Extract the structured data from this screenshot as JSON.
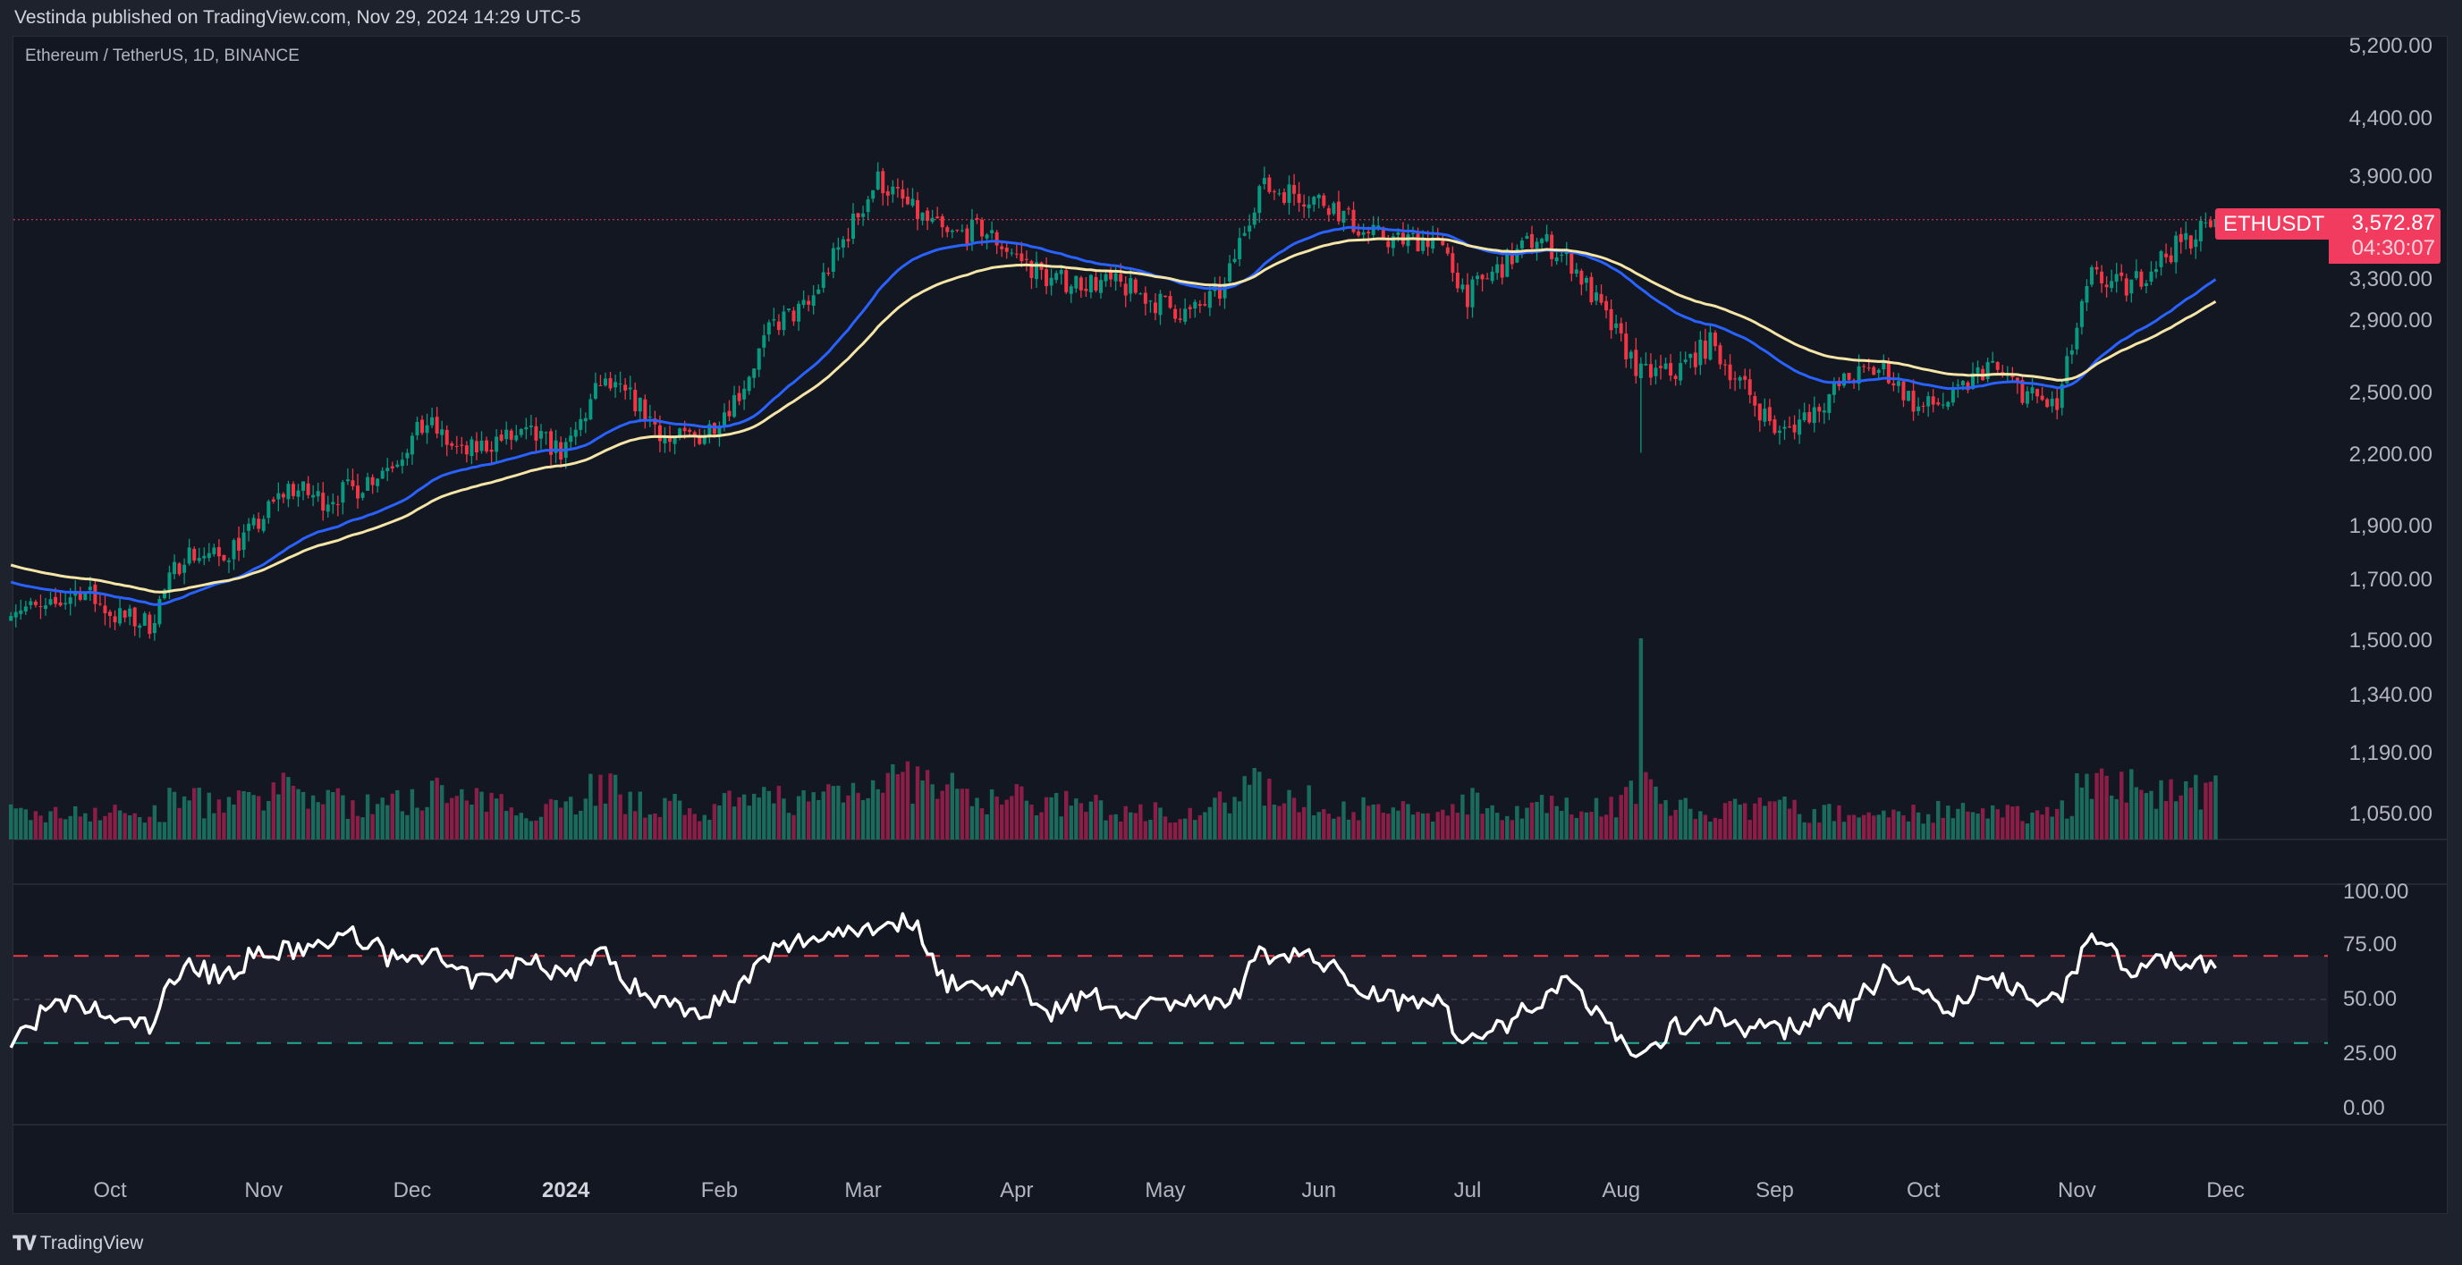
{
  "header": {
    "published": "Vestinda published on TradingView.com, Nov 29, 2024 14:29 UTC-5"
  },
  "footer": {
    "brand": "TradingView",
    "logo_text": "TV"
  },
  "colors": {
    "up": "#089981",
    "down": "#f23645",
    "volume_up": "#1b6b5c",
    "volume_down": "#8a1e47",
    "ma_fast": "#2962ff",
    "ma_slow": "#f5e6a8",
    "price_label": "#f23c5f",
    "rsi_line": "#ffffff",
    "rsi_upper": "#f23645",
    "rsi_lower": "#22ab94"
  },
  "chart_data": {
    "type": "candlestick",
    "title": "Ethereum / TetherUS, 1D, BINANCE",
    "symbol": "ETHUSDT",
    "last_price": "3,572.87",
    "countdown": "04:30:07",
    "price_scale": "log",
    "ylim": [
      1050,
      5200
    ],
    "price_ticks": [
      "5,200.00",
      "4,400.00",
      "3,900.00",
      "3,300.00",
      "2,900.00",
      "2,500.00",
      "2,200.00",
      "1,900.00",
      "1,700.00",
      "1,500.00",
      "1,340.00",
      "1,190.00",
      "1,050.00"
    ],
    "price_tick_values": [
      5200,
      4400,
      3900,
      3300,
      2900,
      2500,
      2200,
      1900,
      1700,
      1500,
      1340,
      1190,
      1050
    ],
    "x_ticks": [
      {
        "label": "Oct",
        "date": "2023-10-01"
      },
      {
        "label": "Nov",
        "date": "2023-11-01"
      },
      {
        "label": "Dec",
        "date": "2023-12-01"
      },
      {
        "label": "2024",
        "date": "2024-01-01",
        "year": true
      },
      {
        "label": "Feb",
        "date": "2024-02-01"
      },
      {
        "label": "Mar",
        "date": "2024-03-01"
      },
      {
        "label": "Apr",
        "date": "2024-04-01"
      },
      {
        "label": "May",
        "date": "2024-05-01"
      },
      {
        "label": "Jun",
        "date": "2024-06-01"
      },
      {
        "label": "Jul",
        "date": "2024-07-01"
      },
      {
        "label": "Aug",
        "date": "2024-08-01"
      },
      {
        "label": "Sep",
        "date": "2024-09-01"
      },
      {
        "label": "Oct",
        "date": "2024-10-01"
      },
      {
        "label": "Nov",
        "date": "2024-11-01"
      },
      {
        "label": "Dec",
        "date": "2024-12-01"
      }
    ],
    "weekly_dates_start": "2023-09-11",
    "last_date": "2024-11-29",
    "weekly_close": [
      1620,
      1590,
      1670,
      1580,
      1555,
      1800,
      1780,
      1890,
      2060,
      2010,
      2060,
      2170,
      2350,
      2200,
      2270,
      2290,
      2210,
      2550,
      2460,
      2260,
      2300,
      2500,
      2880,
      2990,
      3420,
      3880,
      3640,
      3450,
      3505,
      3310,
      3150,
      3150,
      3120,
      3020,
      2940,
      3100,
      3820,
      3780,
      3700,
      3480,
      3420,
      3440,
      3060,
      3250,
      3450,
      3270,
      2910,
      2600,
      2610,
      2770,
      2520,
      2290,
      2420,
      2580,
      2630,
      2420,
      2470,
      2650,
      2510,
      2420,
      3180,
      3100,
      3300,
      3572.87
    ],
    "weekly_volume": [
      30,
      28,
      32,
      30,
      28,
      45,
      40,
      42,
      55,
      48,
      38,
      42,
      55,
      45,
      40,
      35,
      42,
      60,
      40,
      38,
      32,
      40,
      48,
      45,
      58,
      70,
      65,
      55,
      45,
      48,
      40,
      38,
      30,
      32,
      30,
      40,
      60,
      45,
      38,
      35,
      32,
      30,
      45,
      35,
      38,
      35,
      40,
      60,
      38,
      30,
      35,
      38,
      30,
      28,
      32,
      30,
      32,
      28,
      30,
      35,
      65,
      60,
      58,
      55
    ],
    "volume_spike_date": "2024-08-05",
    "moving_averages": [
      {
        "type": "EMA",
        "period": 50,
        "color": "#2962ff"
      },
      {
        "type": "EMA",
        "period": 100,
        "color": "#f5e6a8"
      }
    ],
    "rsi": {
      "ylim": [
        0,
        100
      ],
      "ticks": [
        "100.00",
        "75.00",
        "50.00",
        "25.00",
        "0.00"
      ],
      "tick_values": [
        100,
        75,
        50,
        25,
        0
      ],
      "upper_band": 70,
      "middle_band": 50,
      "lower_band": 30,
      "weekly_values": [
        30,
        45,
        48,
        40,
        38,
        68,
        60,
        70,
        72,
        75,
        80,
        68,
        72,
        60,
        58,
        70,
        60,
        72,
        55,
        48,
        45,
        55,
        72,
        78,
        82,
        84,
        86,
        58,
        55,
        58,
        45,
        52,
        45,
        48,
        50,
        45,
        70,
        72,
        65,
        55,
        50,
        52,
        30,
        38,
        50,
        58,
        40,
        22,
        38,
        42,
        38,
        35,
        42,
        45,
        62,
        55,
        45,
        60,
        55,
        48,
        80,
        65,
        66,
        68
      ]
    }
  }
}
